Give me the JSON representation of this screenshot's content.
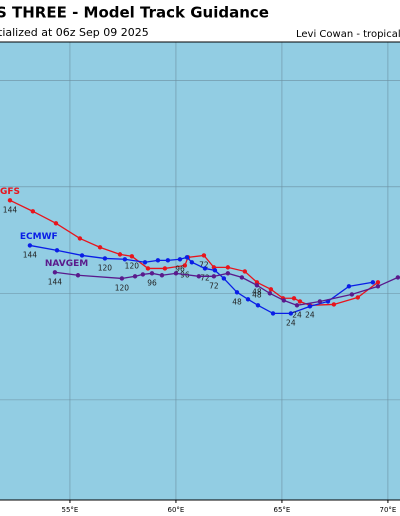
{
  "chart_data": {
    "type": "line",
    "title": "S THREE - Model Track Guidance",
    "subtitle": "tialized at 06z Sep 09 2025",
    "credit": "Levi Cowan - tropicaltid",
    "xlim": [
      51.7,
      70.57
    ],
    "ylim": [
      0.3,
      21.8
    ],
    "xticks": [
      {
        "value": 55,
        "label": "55°E"
      },
      {
        "value": 60,
        "label": "60°E"
      },
      {
        "value": 65,
        "label": "65°E"
      },
      {
        "value": 70,
        "label": "70°E"
      }
    ],
    "ygrid": [
      5,
      10,
      15,
      20
    ],
    "background": "#92cde3",
    "series": [
      {
        "name": "GFS",
        "color": "#e8141c",
        "x": [
          52.17,
          53.25,
          54.34,
          55.47,
          56.42,
          57.36,
          57.92,
          58.68,
          59.48,
          60.42,
          60.57,
          61.32,
          61.79,
          62.45,
          63.25,
          63.82,
          64.48,
          65.05,
          65.57,
          65.85,
          66.32,
          67.45,
          68.58,
          69.53
        ],
        "values": [
          14.37,
          13.85,
          13.29,
          12.58,
          12.16,
          11.83,
          11.74,
          11.17,
          11.17,
          11.31,
          11.69,
          11.78,
          11.22,
          11.22,
          11.03,
          10.52,
          10.19,
          9.77,
          9.77,
          9.62,
          9.44,
          9.48,
          9.81,
          10.52
        ],
        "point_labels": [
          "144",
          null,
          null,
          null,
          null,
          null,
          "120",
          null,
          null,
          "96",
          null,
          "72",
          null,
          null,
          null,
          "48",
          null,
          null,
          null,
          null,
          "24",
          null,
          null,
          null
        ]
      },
      {
        "name": "ECMWF",
        "color": "#0a1ee6",
        "x": [
          53.11,
          54.39,
          55.57,
          56.65,
          57.59,
          58.54,
          59.15,
          59.62,
          60.19,
          60.52,
          60.75,
          61.37,
          61.84,
          62.26,
          62.88,
          63.4,
          63.87,
          64.58,
          65.42,
          66.32,
          67.17,
          68.16,
          69.29
        ],
        "values": [
          12.25,
          12.02,
          11.78,
          11.64,
          11.6,
          11.46,
          11.55,
          11.55,
          11.6,
          11.69,
          11.46,
          11.17,
          11.08,
          10.7,
          10.05,
          9.72,
          9.44,
          9.06,
          9.06,
          9.39,
          9.62,
          10.33,
          10.52
        ],
        "point_labels": [
          "144",
          null,
          null,
          "120",
          null,
          null,
          null,
          null,
          "96",
          null,
          null,
          "72",
          null,
          null,
          "48",
          null,
          null,
          null,
          "24",
          null,
          null,
          null,
          null
        ]
      },
      {
        "name": "NAVGEM",
        "color": "#5a1a8c",
        "x": [
          54.29,
          55.38,
          57.45,
          58.07,
          58.44,
          58.87,
          59.34,
          60.0,
          61.08,
          61.79,
          62.45,
          63.11,
          63.82,
          64.43,
          65.09,
          65.71,
          66.79,
          68.3,
          69.53,
          70.47
        ],
        "values": [
          10.99,
          10.85,
          10.7,
          10.8,
          10.89,
          10.94,
          10.85,
          10.94,
          10.8,
          10.8,
          10.94,
          10.75,
          10.38,
          10.0,
          9.67,
          9.44,
          9.62,
          9.95,
          10.33,
          10.75
        ],
        "point_labels": [
          "144",
          null,
          "120",
          null,
          null,
          "96",
          null,
          null,
          null,
          "72",
          null,
          null,
          "48",
          null,
          null,
          "24",
          null,
          null,
          null,
          null
        ]
      }
    ]
  }
}
